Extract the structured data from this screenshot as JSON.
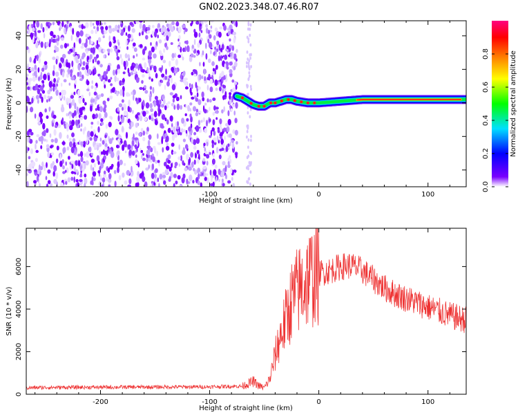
{
  "title": "GN02.2023.348.07.46.R07",
  "chart_data": [
    {
      "id": "spectrogram",
      "type": "heatmap",
      "xlabel": "Height of straight line (km)",
      "ylabel": "Frequency (Hz)",
      "xlim": [
        -268,
        135
      ],
      "ylim": [
        -50,
        49
      ],
      "xticks": [
        -200,
        -100,
        0,
        100
      ],
      "yticks": [
        -40,
        -20,
        0,
        20,
        40
      ],
      "xtick_labels": [
        "-200",
        "-100",
        "0",
        "100"
      ],
      "ytick_labels": [
        "-40",
        "-20",
        "0",
        "20",
        "40"
      ],
      "colorbar": {
        "label": "Normalized spectral amplitude",
        "range": [
          0,
          1
        ],
        "ticks": [
          0.0,
          0.2,
          0.4,
          0.6,
          0.8
        ],
        "tick_labels": [
          "0.0",
          "0.2",
          "0.4",
          "0.6",
          "0.8"
        ],
        "colormap": [
          "#ffffff",
          "#7a00ff",
          "#0000ff",
          "#00e0ff",
          "#00ff00",
          "#ffff00",
          "#ff8000",
          "#ff0000",
          "#ff0080"
        ]
      },
      "noise_region_x": [
        -268,
        -75
      ],
      "signal_region_x": [
        -75,
        135
      ],
      "carrier_frequency_track": {
        "x": [
          -75,
          -70,
          -65,
          -60,
          -55,
          -50,
          -45,
          -40,
          -35,
          -30,
          -25,
          -20,
          -10,
          0,
          20,
          40,
          60,
          80,
          100,
          120,
          135
        ],
        "y": [
          4,
          3,
          1,
          -1,
          -2,
          -2,
          0,
          0,
          1,
          2,
          2,
          1,
          0,
          0,
          1,
          2,
          2,
          2,
          2,
          2,
          2
        ]
      }
    },
    {
      "id": "snr",
      "type": "line",
      "xlabel": "Height of straight line (km)",
      "ylabel": "SNR (10 * v/v)",
      "xlim": [
        -268,
        135
      ],
      "ylim": [
        0,
        7800
      ],
      "xticks": [
        -200,
        -100,
        0,
        100
      ],
      "yticks": [
        0,
        2000,
        4000,
        6000
      ],
      "xtick_labels": [
        "-200",
        "-100",
        "0",
        "100"
      ],
      "ytick_labels": [
        "0",
        "2000",
        "4000",
        "6000"
      ],
      "color": "#ee3333",
      "series": [
        {
          "x": [
            -268,
            -250,
            -200,
            -150,
            -100,
            -70,
            -60,
            -55,
            -50,
            -45,
            -40,
            -35,
            -30,
            -25,
            -20,
            -15,
            -10,
            -5,
            0,
            10,
            20,
            30,
            40,
            50,
            60,
            70,
            80,
            90,
            100,
            110,
            120,
            130,
            135
          ],
          "values": [
            300,
            320,
            330,
            340,
            350,
            380,
            600,
            400,
            300,
            700,
            1800,
            2800,
            3500,
            4400,
            4800,
            5100,
            5400,
            5600,
            5700,
            5800,
            6000,
            6050,
            5800,
            5400,
            5000,
            4700,
            4500,
            4300,
            4100,
            3900,
            3700,
            3550,
            3500
          ]
        }
      ]
    }
  ]
}
